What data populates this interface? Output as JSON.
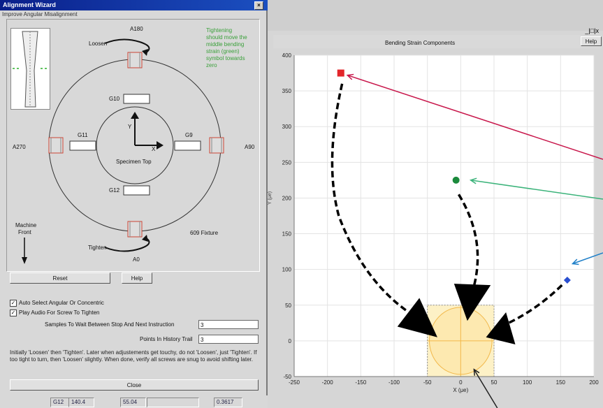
{
  "wizard": {
    "title": "Alignment Wizard",
    "close_glyph": "×",
    "subtitle": "Improve Angular Misalignment",
    "diagram": {
      "positions": {
        "top": "A180",
        "right": "A90",
        "bottom": "A0",
        "left": "A270"
      },
      "gauges": {
        "top": "G10",
        "right": "G9",
        "bottom": "G12",
        "left": "G11"
      },
      "loosen": "Loosen",
      "tighten": "Tighten",
      "axis_y": "Y",
      "axis_x": "X",
      "specimen": "Specimen Top",
      "fixture": "609 Fixture",
      "machine_front_1": "Machine",
      "machine_front_2": "Front",
      "note": "Tightening should move the middle bending strain (green) symbol towards zero"
    },
    "reset_label": "Reset",
    "help_label": "Help",
    "auto_select": {
      "label": "Auto Select Angular Or Concentric",
      "checked": "✓"
    },
    "play_audio": {
      "label": "Play Audio For Screw To Tighten",
      "checked": "✓"
    },
    "samples_label": "Samples To Wait Between Stop And Next Instruction",
    "samples_value": "3",
    "points_label": "Points In History Trail",
    "points_value": "3",
    "instructions": "Initially 'Loosen' then 'Tighten'. Later when adjustements get touchy, do not 'Loosen', just 'Tighten'. If too tight to turn, then 'Loosen' slightly. When done, verify all screws are snug to avoid shifting later.",
    "close_label": "Close",
    "status": [
      "G12",
      "140.4",
      "55.04",
      "",
      "0.3617"
    ]
  },
  "right": {
    "window_controls": "_|□|x",
    "chart_title": "Bending Strain Components",
    "help_label": "Help"
  },
  "chart_data": {
    "type": "scatter",
    "title": "Bending Strain Components",
    "xlabel": "X (μe)",
    "ylabel": "Y (μe)",
    "xlim": [
      -250,
      200
    ],
    "ylim": [
      -50,
      400
    ],
    "xticks": [
      -250,
      -200,
      -150,
      -100,
      -50,
      0,
      50,
      100,
      150,
      200
    ],
    "yticks": [
      -50,
      0,
      50,
      100,
      150,
      200,
      250,
      300,
      350,
      400
    ],
    "grid": true,
    "target_circle": {
      "center": [
        0,
        0
      ],
      "radius": 47
    },
    "series": [
      {
        "values": [
          [
            -180,
            375
          ]
        ],
        "color": "#e3262a",
        "marker": "square"
      },
      {
        "values": [
          [
            -7,
            225
          ]
        ],
        "color": "#1b8a3c",
        "marker": "circle"
      },
      {
        "values": [
          [
            160,
            85
          ]
        ],
        "color": "#2a4fd0",
        "marker": "diamond"
      }
    ],
    "colors": {
      "red_arrow": "#c8174b",
      "green_arrow": "#3bb37a",
      "blue_arrow": "#1f7fc8",
      "target_fill": "#fdf1c6",
      "target_stroke": "#f2b84a"
    }
  }
}
